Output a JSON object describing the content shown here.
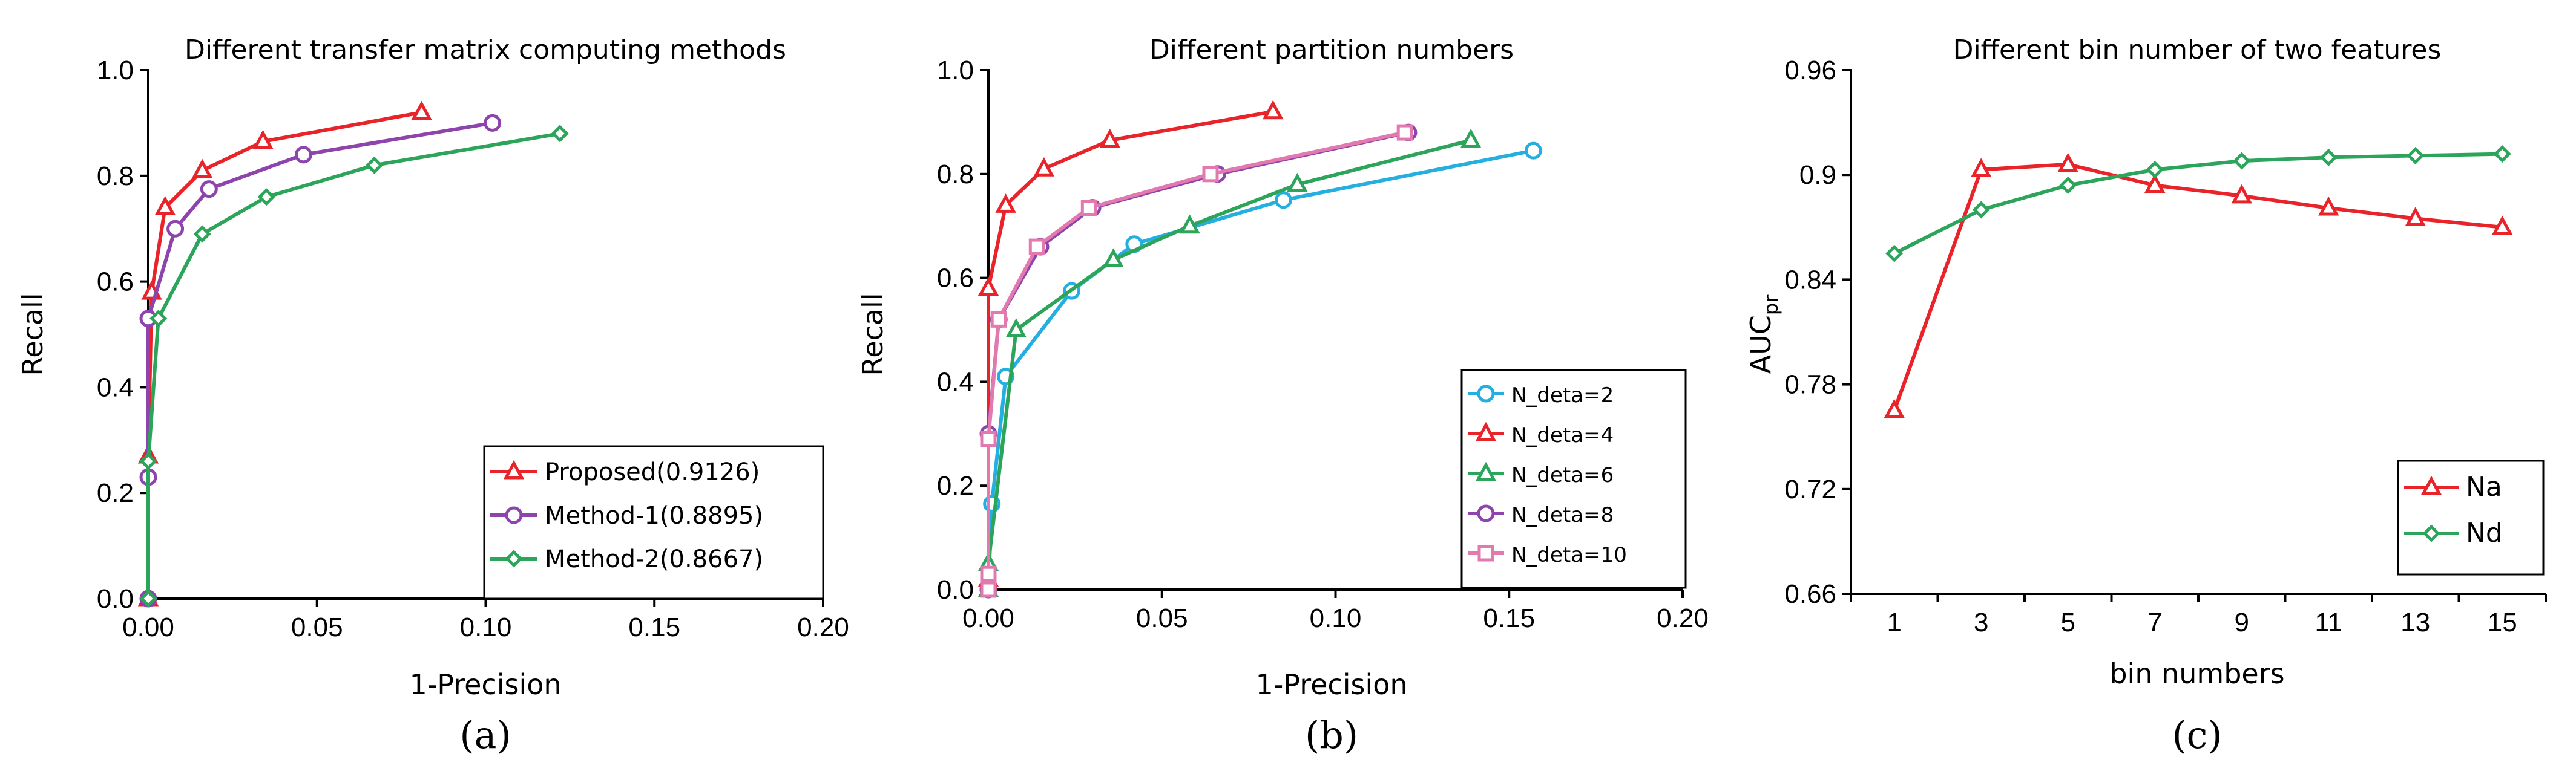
{
  "colors": {
    "red": "#e8232a",
    "purple": "#8e44ad",
    "green": "#2ca55a",
    "cyan": "#25aee0",
    "pink": "#e27ab0"
  },
  "chart_data": [
    {
      "type": "line",
      "title": "Different transfer matrix computing methods",
      "xlabel": "1-Precision",
      "ylabel": "Recall",
      "subfigure_label": "(a)",
      "xlim": [
        0,
        0.2
      ],
      "ylim": [
        0,
        1.0
      ],
      "xticks": [
        "0.00",
        "0.05",
        "0.10",
        "0.15",
        "0.20"
      ],
      "yticks": [
        "0.0",
        "0.2",
        "0.4",
        "0.6",
        "0.8",
        "1.0"
      ],
      "legend_position": "bottom-right",
      "series": [
        {
          "name": "Proposed(0.9126)",
          "color": "red",
          "marker": "triangle",
          "x": [
            0.0,
            0.0,
            0.001,
            0.005,
            0.016,
            0.034,
            0.081
          ],
          "y": [
            0.0,
            0.27,
            0.58,
            0.74,
            0.81,
            0.865,
            0.92
          ]
        },
        {
          "name": "Method-1(0.8895)",
          "color": "purple",
          "marker": "circle",
          "x": [
            0.0,
            0.0,
            0.0,
            0.008,
            0.018,
            0.046,
            0.102
          ],
          "y": [
            0.0,
            0.23,
            0.53,
            0.7,
            0.775,
            0.84,
            0.9
          ]
        },
        {
          "name": "Method-2(0.8667)",
          "color": "green",
          "marker": "diamond",
          "x": [
            0.0,
            0.0,
            0.003,
            0.016,
            0.035,
            0.067,
            0.122
          ],
          "y": [
            0.0,
            0.26,
            0.53,
            0.69,
            0.76,
            0.82,
            0.88
          ]
        }
      ]
    },
    {
      "type": "line",
      "title": "Different partition numbers",
      "xlabel": "1-Precision",
      "ylabel": "Recall",
      "subfigure_label": "(b)",
      "xlim": [
        0,
        0.2
      ],
      "ylim": [
        0,
        1.0
      ],
      "xticks": [
        "0.00",
        "0.05",
        "0.10",
        "0.15",
        "0.20"
      ],
      "yticks": [
        "0.0",
        "0.2",
        "0.4",
        "0.6",
        "0.8",
        "1.0"
      ],
      "legend_position": "bottom-right",
      "series": [
        {
          "name": "N_deta=2",
          "color": "cyan",
          "marker": "circle",
          "x": [
            0.0,
            0.001,
            0.005,
            0.024,
            0.042,
            0.085,
            0.157
          ],
          "y": [
            0.0,
            0.165,
            0.41,
            0.575,
            0.665,
            0.75,
            0.845
          ]
        },
        {
          "name": "N_deta=4",
          "color": "red",
          "marker": "triangle",
          "x": [
            0.0,
            0.0,
            0.0,
            0.005,
            0.016,
            0.035,
            0.082
          ],
          "y": [
            0.0,
            0.02,
            0.58,
            0.74,
            0.81,
            0.865,
            0.92
          ]
        },
        {
          "name": "N_deta=6",
          "color": "green",
          "marker": "triangle",
          "x": [
            0.0,
            0.0,
            0.008,
            0.036,
            0.058,
            0.089,
            0.139
          ],
          "y": [
            0.0,
            0.05,
            0.5,
            0.635,
            0.7,
            0.78,
            0.865
          ]
        },
        {
          "name": "N_deta=8",
          "color": "purple",
          "marker": "circle",
          "x": [
            0.0,
            0.0,
            0.003,
            0.015,
            0.03,
            0.066,
            0.121
          ],
          "y": [
            0.0,
            0.3,
            0.52,
            0.66,
            0.735,
            0.8,
            0.88
          ]
        },
        {
          "name": "N_deta=10",
          "color": "pink",
          "marker": "square",
          "x": [
            0.0,
            0.0,
            0.0,
            0.003,
            0.014,
            0.029,
            0.064,
            0.12
          ],
          "y": [
            0.0,
            0.03,
            0.29,
            0.52,
            0.66,
            0.735,
            0.8,
            0.88
          ]
        }
      ]
    },
    {
      "type": "line",
      "title": "Different bin number of two features",
      "xlabel": "bin numbers",
      "ylabel": "AUC",
      "ylabel_subscript": "pr",
      "subfigure_label": "(c)",
      "ylim": [
        0.66,
        0.96
      ],
      "yticks": [
        "0.66",
        "0.72",
        "0.78",
        "0.84",
        "0.9",
        "0.96"
      ],
      "categories": [
        "1",
        "3",
        "5",
        "7",
        "9",
        "11",
        "13",
        "15"
      ],
      "legend_position": "bottom-right",
      "series": [
        {
          "name": "Na",
          "color": "red",
          "marker": "triangle",
          "values": [
            0.765,
            0.903,
            0.906,
            0.894,
            0.888,
            0.881,
            0.875,
            0.87
          ]
        },
        {
          "name": "Nd",
          "color": "green",
          "marker": "diamond",
          "values": [
            0.855,
            0.88,
            0.894,
            0.903,
            0.908,
            0.91,
            0.911,
            0.912
          ]
        }
      ]
    }
  ]
}
